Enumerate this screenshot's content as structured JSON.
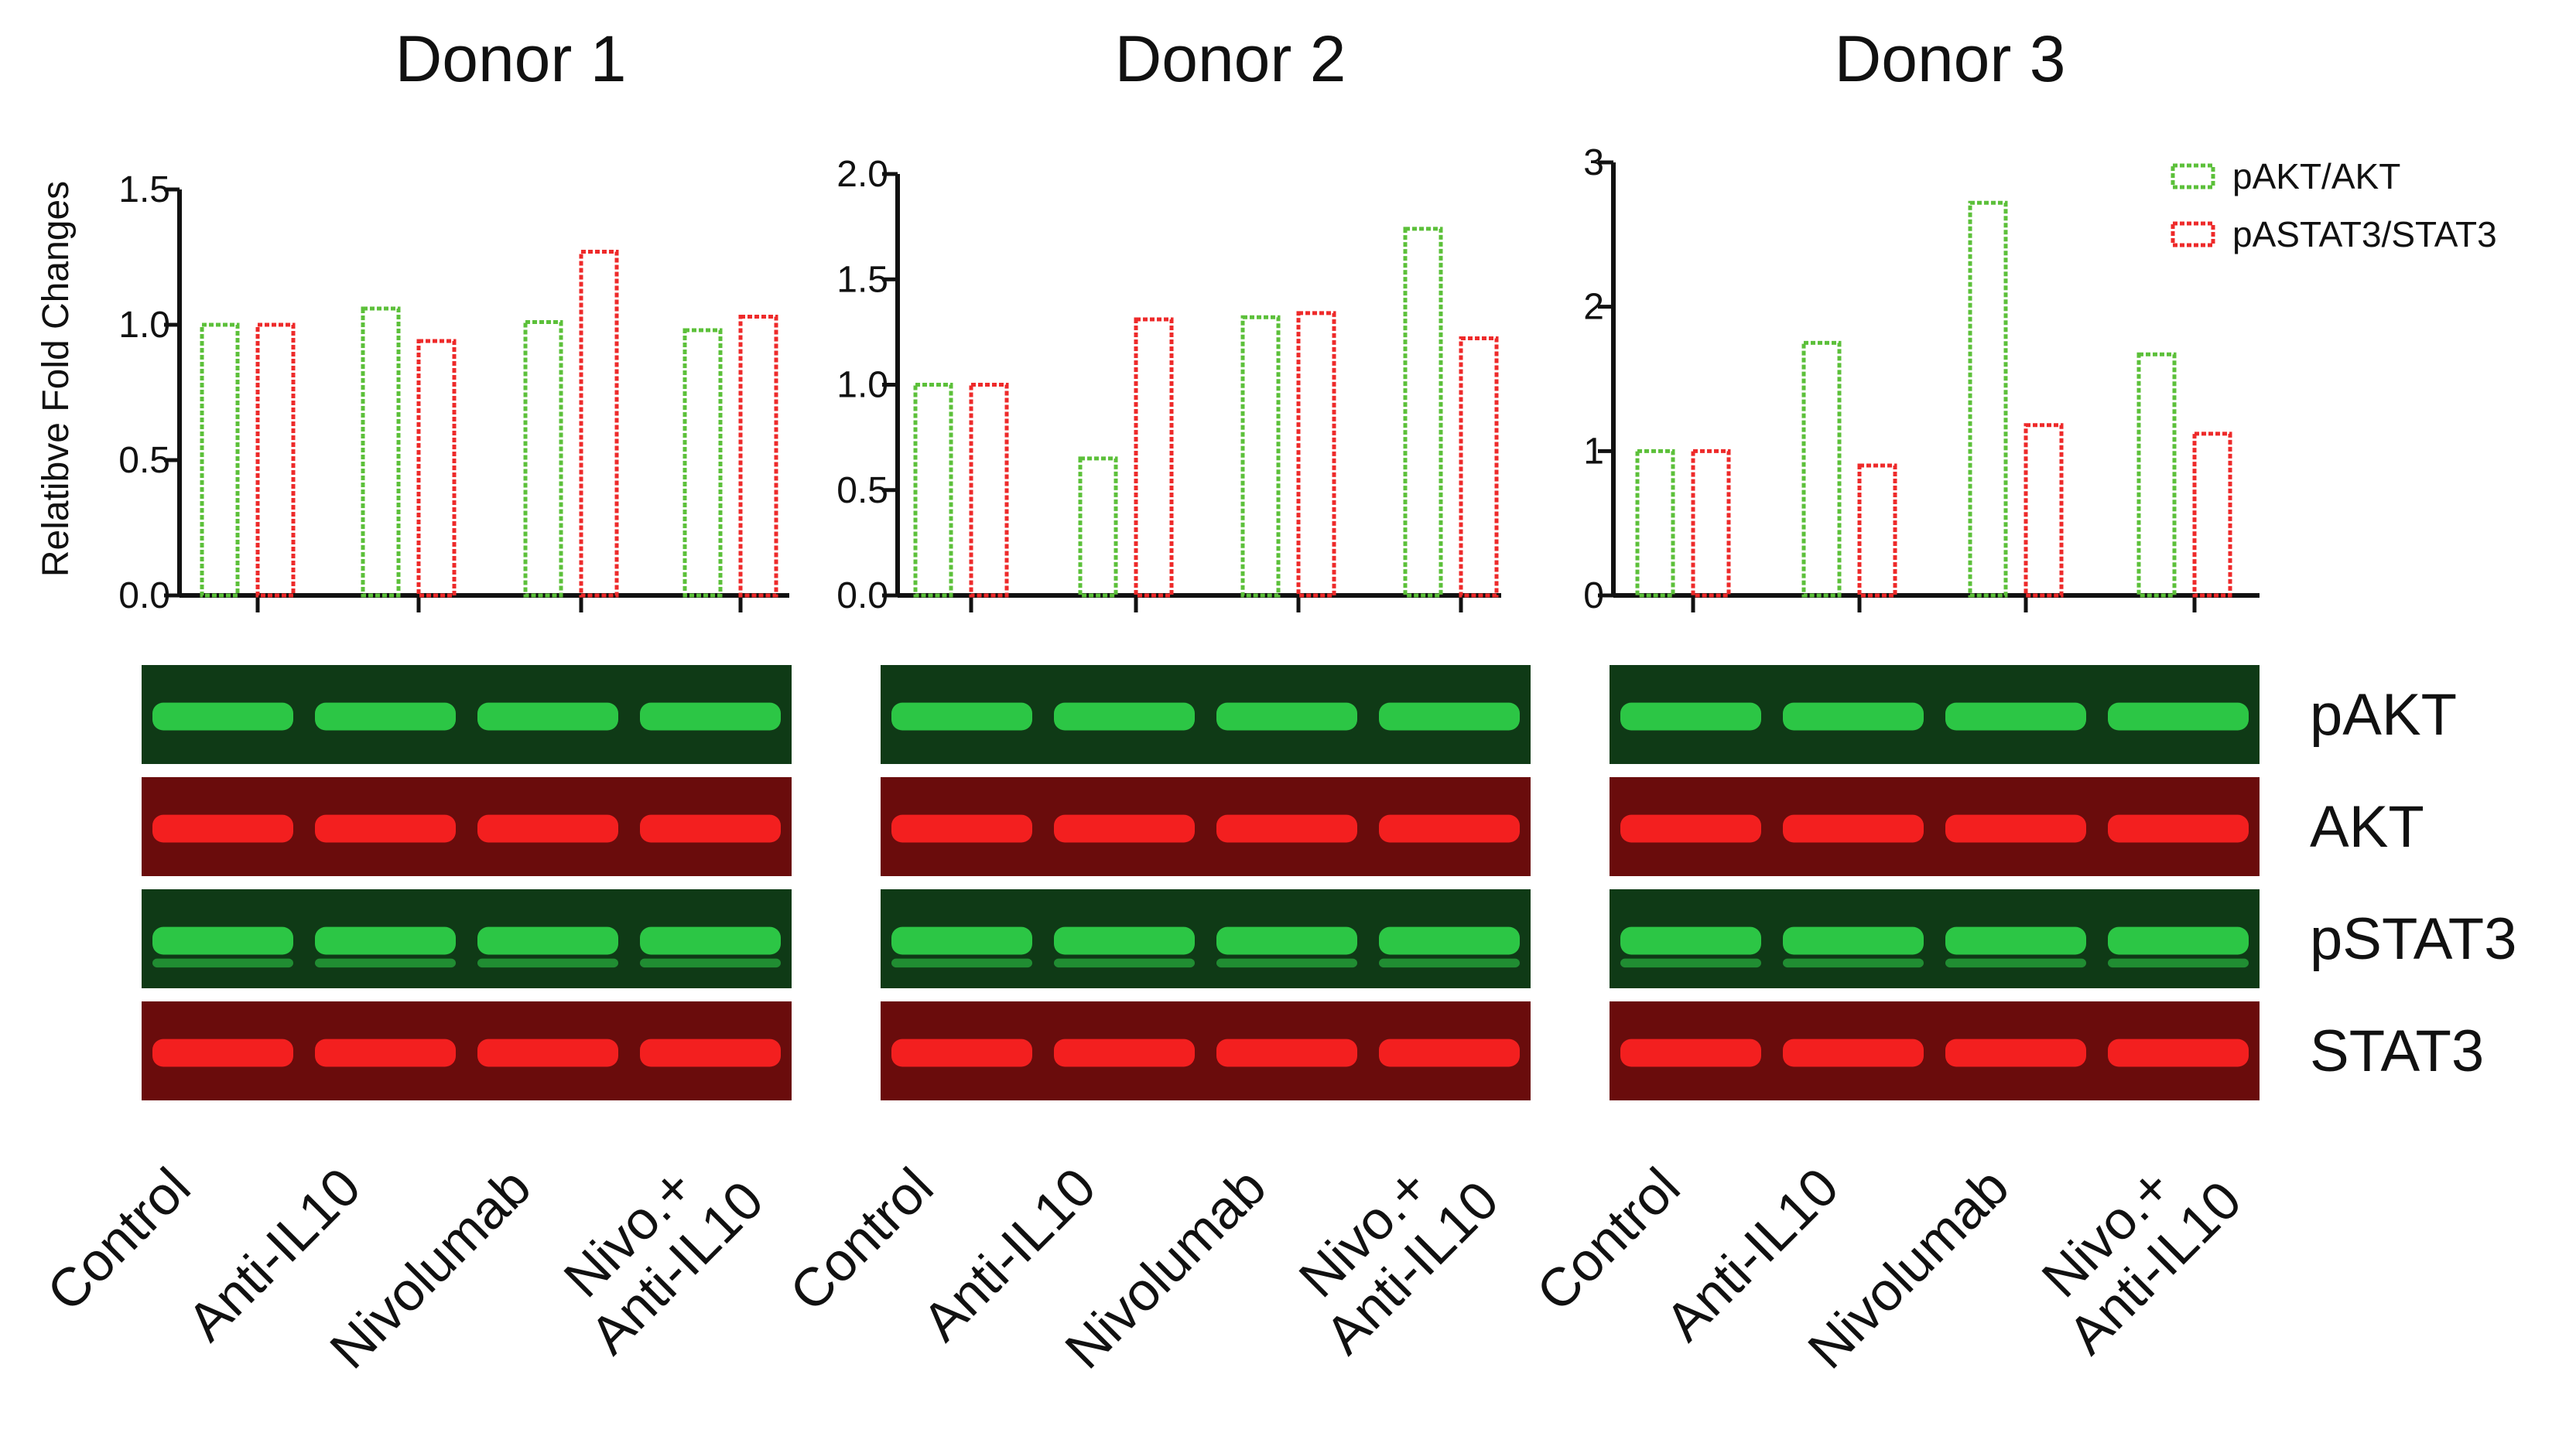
{
  "y_axis_label": "Relatibve Fold Changes",
  "legend": [
    {
      "name": "pAKT/AKT",
      "color": "#5cc03a"
    },
    {
      "name": "pASTAT3/STAT3",
      "color": "#ee2a2a"
    }
  ],
  "blot_labels": [
    "pAKT",
    "AKT",
    "pSTAT3",
    "STAT3"
  ],
  "blot_colors": {
    "green_bg": "#0f3a16",
    "green_band": "#2fd24a",
    "red_bg": "#6a0c0c",
    "red_band": "#ff2222"
  },
  "conditions": [
    {
      "line1": "Control",
      "line2": ""
    },
    {
      "line1": "Anti-IL10",
      "line2": ""
    },
    {
      "line1": "Nivolumab",
      "line2": ""
    },
    {
      "line1": "Nivo.+",
      "line2": "Anti-IL10"
    }
  ],
  "chart_data": [
    {
      "type": "bar",
      "title": "Donor 1",
      "categories": [
        "Control",
        "Anti-IL10",
        "Nivolumab",
        "Nivo.+ Anti-IL10"
      ],
      "series": [
        {
          "name": "pAKT/AKT",
          "values": [
            1.0,
            1.06,
            1.01,
            0.98
          ]
        },
        {
          "name": "pASTAT3/STAT3",
          "values": [
            1.0,
            0.94,
            1.27,
            1.03
          ]
        }
      ],
      "ylim": [
        0,
        1.5
      ],
      "yticks": [
        "0.0",
        "0.5",
        "1.0",
        "1.5"
      ],
      "ylabel": "Relatibve Fold Changes"
    },
    {
      "type": "bar",
      "title": "Donor 2",
      "categories": [
        "Control",
        "Anti-IL10",
        "Nivolumab",
        "Nivo.+ Anti-IL10"
      ],
      "series": [
        {
          "name": "pAKT/AKT",
          "values": [
            1.0,
            0.65,
            1.32,
            1.74
          ]
        },
        {
          "name": "pASTAT3/STAT3",
          "values": [
            1.0,
            1.31,
            1.34,
            1.22
          ]
        }
      ],
      "ylim": [
        0,
        2.0
      ],
      "yticks": [
        "0.0",
        "0.5",
        "1.0",
        "1.5",
        "2.0"
      ]
    },
    {
      "type": "bar",
      "title": "Donor 3",
      "categories": [
        "Control",
        "Anti-IL10",
        "Nivolumab",
        "Nivo.+ Anti-IL10"
      ],
      "series": [
        {
          "name": "pAKT/AKT",
          "values": [
            1.0,
            1.75,
            2.72,
            1.67
          ]
        },
        {
          "name": "pASTAT3/STAT3",
          "values": [
            1.0,
            0.9,
            1.18,
            1.12
          ]
        }
      ],
      "ylim": [
        0,
        3
      ],
      "yticks": [
        "0",
        "1",
        "2",
        "3"
      ]
    }
  ]
}
